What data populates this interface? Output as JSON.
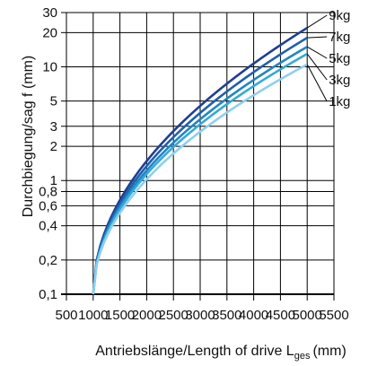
{
  "chart_data": {
    "type": "line",
    "ylabel": "Durchbiegung/sag f (mm)",
    "xlabel": {
      "main": "Antriebslänge/Length of drive L",
      "subscript": "ges",
      "unit": "(mm)"
    },
    "xlim": [
      500,
      5500
    ],
    "ylim": [
      0.1,
      30
    ],
    "y_scale": "log",
    "grid": true,
    "x_ticks": [
      {
        "value": 500,
        "label": "500"
      },
      {
        "value": 1000,
        "label": "1000"
      },
      {
        "value": 1500,
        "label": "1500"
      },
      {
        "value": 2000,
        "label": "2000"
      },
      {
        "value": 2500,
        "label": "2500"
      },
      {
        "value": 3000,
        "label": "3000"
      },
      {
        "value": 3500,
        "label": "3500"
      },
      {
        "value": 4000,
        "label": "4000"
      },
      {
        "value": 4500,
        "label": "4500"
      },
      {
        "value": 5000,
        "label": "5000"
      },
      {
        "value": 5500,
        "label": "5500"
      }
    ],
    "y_ticks": [
      {
        "value": 0.1,
        "label": "0,1"
      },
      {
        "value": 0.2,
        "label": "0,2"
      },
      {
        "value": 0.4,
        "label": "0,4"
      },
      {
        "value": 0.6,
        "label": "0,6"
      },
      {
        "value": 0.8,
        "label": "0,8"
      },
      {
        "value": 1,
        "label": "1"
      },
      {
        "value": 2,
        "label": "2"
      },
      {
        "value": 3,
        "label": "3"
      },
      {
        "value": 5,
        "label": "5"
      },
      {
        "value": 10,
        "label": "10"
      },
      {
        "value": 20,
        "label": "20"
      },
      {
        "value": 30,
        "label": "30"
      }
    ],
    "y_gridlines": [
      0.1,
      0.2,
      0.4,
      0.6,
      0.8,
      1,
      2,
      3,
      5,
      10,
      20,
      30
    ],
    "x_gridlines": [
      500,
      1000,
      1500,
      2000,
      2500,
      3000,
      3500,
      4000,
      4500,
      5000,
      5500
    ],
    "x_start": 1000,
    "y_start": 0.1,
    "series": [
      {
        "name": "9kg",
        "color": "#1f3f8f",
        "x_end": 5000,
        "y_end": 22
      },
      {
        "name": "7kg",
        "color": "#1f5fae",
        "x_end": 5000,
        "y_end": 18
      },
      {
        "name": "5kg",
        "color": "#1f86c4",
        "x_end": 5000,
        "y_end": 15
      },
      {
        "name": "3kg",
        "color": "#35a9d8",
        "x_end": 5000,
        "y_end": 13
      },
      {
        "name": "1kg",
        "color": "#8fcfee",
        "x_end": 5000,
        "y_end": 10.5
      }
    ]
  }
}
